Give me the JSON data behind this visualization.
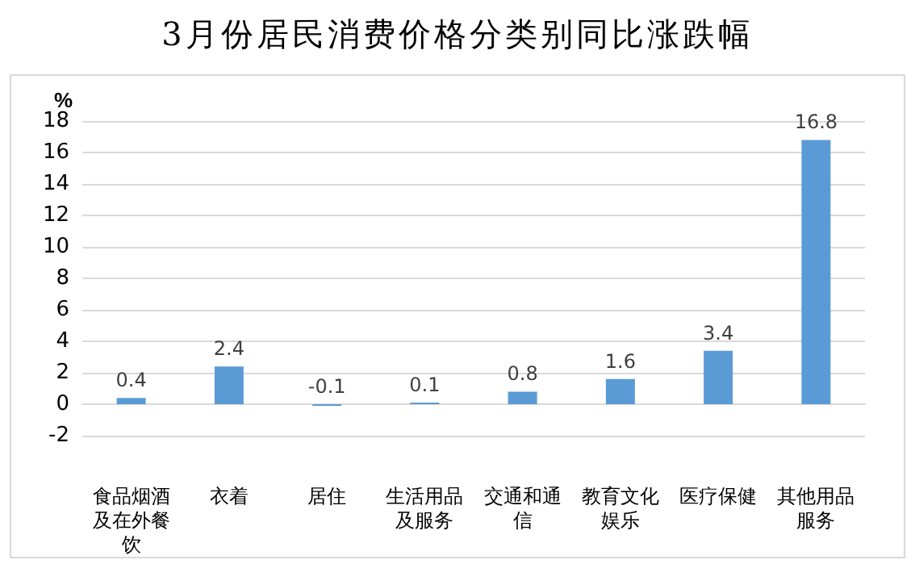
{
  "chart_data": {
    "type": "bar",
    "title": "3月份居民消费价格分类别同比涨跌幅",
    "ylabel": "%",
    "categories": [
      "食品烟酒及在外餐饮",
      "衣着",
      "居住",
      "生活用品及服务",
      "交通和通信",
      "教育文化娱乐",
      "医疗保健",
      "其他用品服务"
    ],
    "values": [
      0.4,
      2.4,
      -0.1,
      0.1,
      0.8,
      1.6,
      3.4,
      16.8
    ],
    "color": "#5b9bd5",
    "ylim": [
      -2,
      18
    ],
    "yticks": [
      -2,
      0,
      2,
      4,
      6,
      8,
      10,
      12,
      14,
      16,
      18
    ],
    "grid": "y",
    "data_labels": true
  }
}
